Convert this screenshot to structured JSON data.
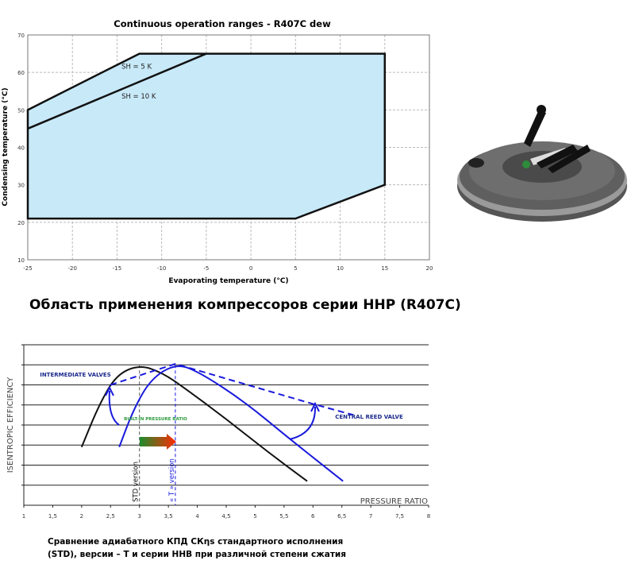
{
  "heading": "Область применения компрессоров серии HHP (R407C)",
  "caption": [
    "Сравнение адиабатного КПД СКηs стандартного исполнения",
    "(STD), версии – Т и серии HHB при различной степени сжатия"
  ],
  "colors": {
    "fill": "#c8e9f8",
    "blue": "#1a1adc",
    "navy": "#1c2a8c",
    "green": "#2a9a3a"
  },
  "chart_data": [
    {
      "type": "area",
      "title": "Continuous operation ranges - R407C dew",
      "xlabel": "Evaporating temperature (°C)",
      "ylabel": "Condensing temperature (°C)",
      "xlim": [
        -25,
        20
      ],
      "ylim": [
        10,
        70
      ],
      "xticks": [
        -25,
        -20,
        -15,
        -10,
        -5,
        0,
        5,
        10,
        15,
        20
      ],
      "yticks": [
        10,
        20,
        30,
        40,
        50,
        60,
        70
      ],
      "grid": true,
      "envelope": [
        [
          -25,
          50
        ],
        [
          -12.5,
          65
        ],
        [
          15,
          65
        ],
        [
          15,
          30
        ],
        [
          5,
          21
        ],
        [
          -25,
          21
        ]
      ],
      "sh10_line": [
        [
          -25,
          45
        ],
        [
          -5,
          65
        ]
      ],
      "annotations": [
        {
          "text": "SH = 5 K",
          "x": -14.5,
          "y": 61
        },
        {
          "text": "SH = 10 K",
          "x": -14.5,
          "y": 53
        }
      ]
    },
    {
      "type": "line",
      "xlabel": "PRESSURE RATIO",
      "ylabel": "ISENTROPIC EFFICIENCY",
      "xlim": [
        1,
        8
      ],
      "ylim": [
        0,
        8
      ],
      "xticks": [
        "1",
        "1,5",
        "2",
        "2,5",
        "3",
        "3,5",
        "4",
        "4,5",
        "5",
        "5,5",
        "6",
        "6,5",
        "7",
        "7,5",
        "8"
      ],
      "series": [
        {
          "name": "STD",
          "points": [
            [
              2,
              2.9
            ],
            [
              2.3,
              5.0
            ],
            [
              2.6,
              6.5
            ],
            [
              3.0,
              7.0
            ],
            [
              3.4,
              6.6
            ],
            [
              3.8,
              5.8
            ],
            [
              4.5,
              4.3
            ],
            [
              5.2,
              2.7
            ],
            [
              5.9,
              1.2
            ]
          ]
        },
        {
          "name": "T",
          "points": [
            [
              2.65,
              2.9
            ],
            [
              2.9,
              4.8
            ],
            [
              3.2,
              6.3
            ],
            [
              3.62,
              7.05
            ],
            [
              4.0,
              6.7
            ],
            [
              4.8,
              5.2
            ],
            [
              5.6,
              3.3
            ],
            [
              6.52,
              1.2
            ]
          ]
        },
        {
          "name": "HHB",
          "dashed": true,
          "points": [
            [
              2.5,
              6.0
            ],
            [
              3.62,
              7.05
            ],
            [
              6.0,
              5.05
            ],
            [
              6.7,
              4.5
            ]
          ]
        }
      ],
      "vlines": [
        {
          "x": 3.0,
          "label": "STD version"
        },
        {
          "x": 3.62,
          "label": "« T » version"
        }
      ],
      "annotations": [
        "INTERMEDIATE VALVES",
        "CENTRAL REED VALVE",
        "BUILT-IN PRESSURE RATIO"
      ]
    }
  ]
}
